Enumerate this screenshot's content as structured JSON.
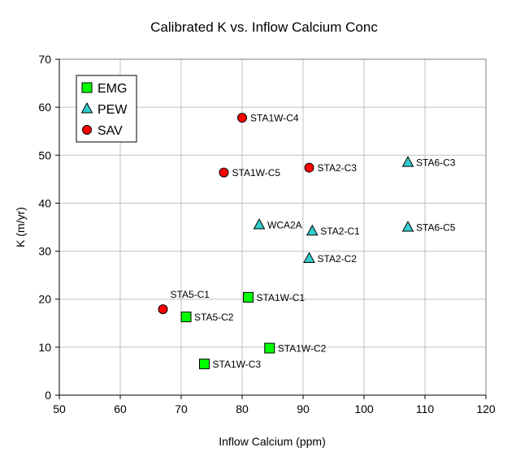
{
  "chart_data": {
    "type": "scatter",
    "title": "Calibrated K vs. Inflow Calcium Conc",
    "xlabel": "Inflow Calcium (ppm)",
    "ylabel": "K (m/yr)",
    "xlim": [
      50,
      120
    ],
    "ylim": [
      0,
      70
    ],
    "xticks": [
      50,
      60,
      70,
      80,
      90,
      100,
      110,
      120
    ],
    "yticks": [
      0,
      10,
      20,
      30,
      40,
      50,
      60,
      70
    ],
    "grid": true,
    "legend_position": "top-left",
    "series": [
      {
        "name": "EMG",
        "marker": "square",
        "color": "#00ff00",
        "points": [
          {
            "x": 81,
            "y": 20.4,
            "label": "STA1W-C1",
            "label_pos": "right"
          },
          {
            "x": 70.8,
            "y": 16.3,
            "label": "STA5-C2",
            "label_pos": "right"
          },
          {
            "x": 84.5,
            "y": 9.8,
            "label": "STA1W-C2",
            "label_pos": "right"
          },
          {
            "x": 73.8,
            "y": 6.5,
            "label": "STA1W-C3",
            "label_pos": "right"
          }
        ]
      },
      {
        "name": "PEW",
        "marker": "triangle",
        "color": "#33cccc",
        "points": [
          {
            "x": 107.2,
            "y": 48.5,
            "label": "STA6-C3",
            "label_pos": "right"
          },
          {
            "x": 82.8,
            "y": 35.5,
            "label": "WCA2A",
            "label_pos": "right"
          },
          {
            "x": 91.5,
            "y": 34.2,
            "label": "STA2-C1",
            "label_pos": "right"
          },
          {
            "x": 107.2,
            "y": 35.0,
            "label": "STA6-C5",
            "label_pos": "right"
          },
          {
            "x": 91.0,
            "y": 28.5,
            "label": "STA2-C2",
            "label_pos": "right"
          }
        ]
      },
      {
        "name": "SAV",
        "marker": "circle",
        "color": "#ff0000",
        "points": [
          {
            "x": 80,
            "y": 57.8,
            "label": "STA1W-C4",
            "label_pos": "right"
          },
          {
            "x": 91,
            "y": 47.4,
            "label": "STA2-C3",
            "label_pos": "right"
          },
          {
            "x": 77,
            "y": 46.4,
            "label": "STA1W-C5",
            "label_pos": "right"
          },
          {
            "x": 67,
            "y": 17.9,
            "label": "STA5-C1",
            "label_pos": "above-right"
          }
        ]
      }
    ]
  }
}
